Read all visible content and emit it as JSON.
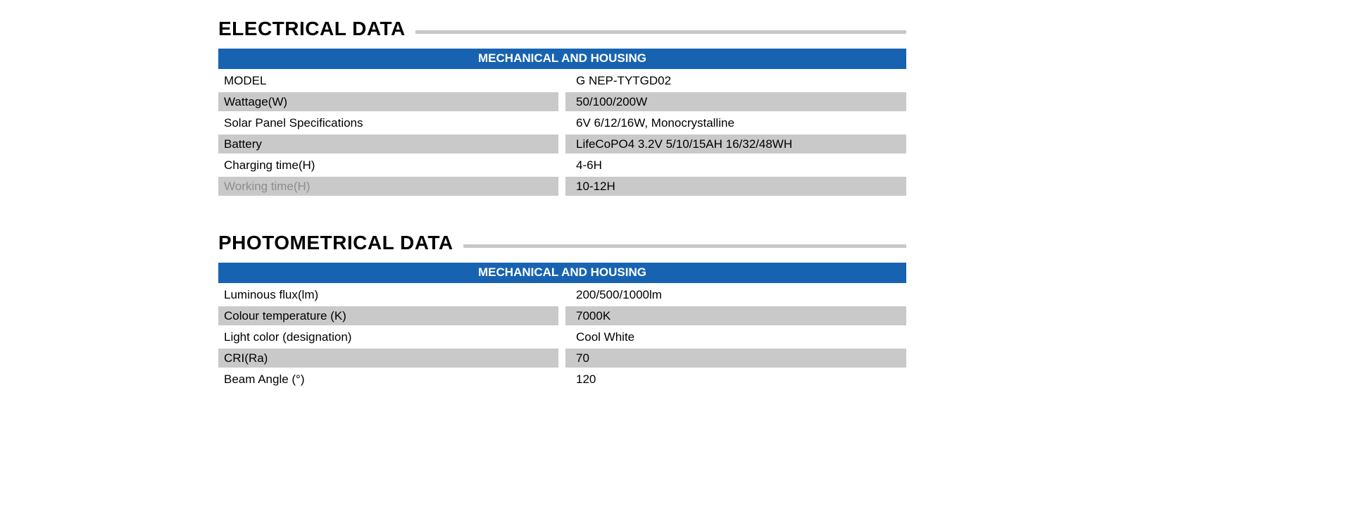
{
  "colors": {
    "header_blue": "#1763b2",
    "shade_gray": "#c9c9c9",
    "rule_gray": "#c7c7c7",
    "muted_text": "#8d8d8d"
  },
  "sections": [
    {
      "title": "ELECTRICAL DATA",
      "table_header": "MECHANICAL AND HOUSING",
      "rows": [
        {
          "label": "MODEL",
          "value": "G NEP-TYTGD02",
          "shaded": false,
          "muted": false
        },
        {
          "label": "Wattage(W)",
          "value": "50/100/200W",
          "shaded": true,
          "muted": false
        },
        {
          "label": "Solar Panel Specifications",
          "value": "6V 6/12/16W, Monocrystalline",
          "shaded": false,
          "muted": false
        },
        {
          "label": "Battery",
          "value": "LifeCoPO4 3.2V 5/10/15AH 16/32/48WH",
          "shaded": true,
          "muted": false
        },
        {
          "label": "Charging time(H)",
          "value": "4-6H",
          "shaded": false,
          "muted": false
        },
        {
          "label": "Working time(H)",
          "value": "10-12H",
          "shaded": true,
          "muted": true
        }
      ]
    },
    {
      "title": "PHOTOMETRICAL DATA",
      "table_header": "MECHANICAL AND HOUSING",
      "rows": [
        {
          "label": "Luminous flux(lm)",
          "value": "200/500/1000lm",
          "shaded": false,
          "muted": false
        },
        {
          "label": "Colour temperature (K)",
          "value": "7000K",
          "shaded": true,
          "muted": false
        },
        {
          "label": "Light color (designation)",
          "value": "Cool White",
          "shaded": false,
          "muted": false
        },
        {
          "label": "CRI(Ra)",
          "value": "70",
          "shaded": true,
          "muted": false
        },
        {
          "label": "Beam Angle (°)",
          "value": "120",
          "shaded": false,
          "muted": false
        }
      ]
    }
  ]
}
